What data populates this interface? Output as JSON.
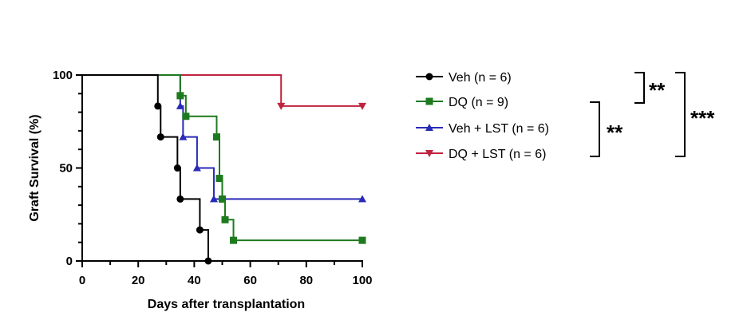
{
  "chart_data": {
    "type": "line",
    "subtype": "kaplan-meier",
    "xlabel": "Days after transplantation",
    "ylabel": "Graft Survival (%)",
    "xlim": [
      0,
      100
    ],
    "ylim": [
      0,
      100
    ],
    "x_ticks": [
      0,
      20,
      40,
      60,
      80,
      100
    ],
    "y_ticks": [
      0,
      50,
      100
    ],
    "legend_position": "right",
    "series": [
      {
        "name": "Veh (n = 6)",
        "color": "#000000",
        "marker": "circle",
        "steps": [
          [
            0,
            100
          ],
          [
            27,
            83.3
          ],
          [
            28,
            66.7
          ],
          [
            34,
            50
          ],
          [
            35,
            33.3
          ],
          [
            42,
            16.7
          ],
          [
            45,
            0
          ]
        ]
      },
      {
        "name": "DQ (n = 9)",
        "color": "#1e7a1e",
        "marker": "square",
        "steps": [
          [
            0,
            100
          ],
          [
            35,
            88.9
          ],
          [
            37,
            77.8
          ],
          [
            48,
            66.7
          ],
          [
            49,
            44.4
          ],
          [
            50,
            33.3
          ],
          [
            51,
            22.2
          ],
          [
            54,
            11.1
          ],
          [
            100,
            11.1
          ]
        ]
      },
      {
        "name": "Veh + LST (n = 6)",
        "color": "#2a2ab8",
        "marker": "triangle-up",
        "steps": [
          [
            0,
            100
          ],
          [
            35,
            83.3
          ],
          [
            36,
            66.7
          ],
          [
            41,
            50
          ],
          [
            47,
            33.3
          ],
          [
            100,
            33.3
          ]
        ]
      },
      {
        "name": "DQ + LST (n = 6)",
        "color": "#c0233f",
        "marker": "triangle-down",
        "steps": [
          [
            0,
            100
          ],
          [
            71,
            83.3
          ],
          [
            100,
            83.3
          ]
        ]
      }
    ],
    "significance": [
      {
        "label": "**",
        "between": [
          "Veh (n = 6)",
          "DQ (n = 9)"
        ]
      },
      {
        "label": "**",
        "between": [
          "DQ (n = 9)",
          "DQ + LST (n = 6)"
        ]
      },
      {
        "label": "***",
        "between": [
          "Veh (n = 6)",
          "DQ + LST (n = 6)"
        ]
      }
    ]
  }
}
